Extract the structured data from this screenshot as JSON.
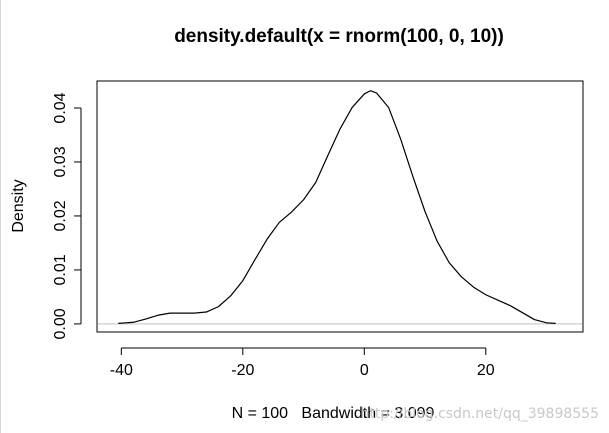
{
  "chart_data": {
    "type": "line",
    "title": "density.default(x = rnorm(100, 0, 10))",
    "xlabel": "N = 100   Bandwidth = 3.099",
    "ylabel": "Density",
    "xlim": [
      -44,
      36
    ],
    "ylim": [
      -0.0015,
      0.045
    ],
    "x_ticks": [
      -40,
      -20,
      0,
      20
    ],
    "x_tick_labels": [
      "-40",
      "-20",
      "0",
      "20"
    ],
    "y_ticks": [
      0.0,
      0.01,
      0.02,
      0.03,
      0.04
    ],
    "y_tick_labels": [
      "0.00",
      "0.01",
      "0.02",
      "0.03",
      "0.04"
    ],
    "grid": false,
    "legend": "none",
    "zero_line": 0,
    "series": [
      {
        "x": [
          -40.5,
          -38,
          -36,
          -34,
          -32,
          -30,
          -28,
          -26,
          -24,
          -22,
          -20,
          -18,
          -16,
          -14,
          -12,
          -10,
          -8,
          -6,
          -4,
          -2,
          0,
          1,
          2,
          4,
          6,
          8,
          10,
          12,
          14,
          16,
          18,
          20,
          22,
          24,
          26,
          28,
          30,
          31.5
        ],
        "y": [
          0.0001,
          0.0003,
          0.0009,
          0.0016,
          0.002,
          0.002,
          0.002,
          0.0022,
          0.0032,
          0.0052,
          0.008,
          0.0119,
          0.0157,
          0.0188,
          0.0207,
          0.023,
          0.0262,
          0.0312,
          0.0361,
          0.0401,
          0.0426,
          0.0432,
          0.0428,
          0.0401,
          0.0342,
          0.0273,
          0.0208,
          0.0153,
          0.0113,
          0.0087,
          0.0068,
          0.0054,
          0.0044,
          0.0034,
          0.0021,
          0.0008,
          0.0002,
          0.0001
        ]
      }
    ]
  },
  "watermark_text": "http://blog.csdn.net/qq_39898555"
}
